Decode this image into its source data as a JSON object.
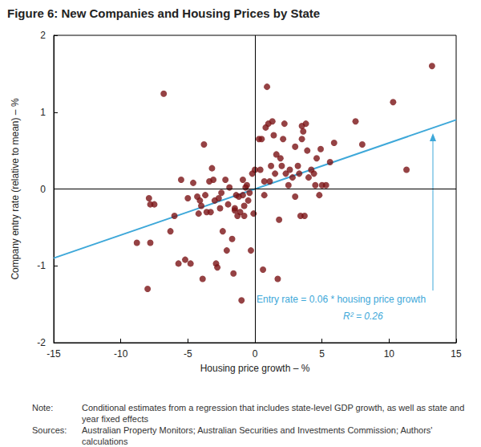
{
  "chart_data": {
    "type": "scatter",
    "title": "Figure 6: New Companies and Housing Prices by State",
    "x_label": "Housing price growth – %",
    "y_label": "Company entry rate (relative to mean) – %",
    "xlim": [
      -15,
      15
    ],
    "xticks": [
      -15,
      -10,
      -5,
      0,
      5,
      10,
      15
    ],
    "ylim": [
      -2,
      2
    ],
    "yticks": [
      -2,
      -1,
      0,
      1,
      2
    ],
    "grid": false,
    "annotations": [
      "Entry rate = 0.06 * housing price growth",
      "R² = 0.26"
    ],
    "notes": [
      {
        "label": "Note:",
        "text": "Conditional estimates from a regression that includes state-level GDP growth, as well as state and year fixed effects"
      },
      {
        "label": "Sources:",
        "text": "Australian Property Monitors; Australian Securities and Investments Commission; Authors' calculations"
      }
    ],
    "series": [
      {
        "type": "scatter",
        "color": "#7a1315",
        "marker": "circle",
        "x": [
          -8.8,
          -8,
          -7.9,
          -7.8,
          -7.5,
          -7.8,
          -6.8,
          -6.3,
          -6,
          -5.7,
          -5.5,
          -5.2,
          -5,
          -4.8,
          -4.6,
          -4.3,
          -4.2,
          -4,
          -3.9,
          -3.8,
          -3.7,
          -3.6,
          -3.4,
          -3.3,
          -3.2,
          -3.1,
          -3,
          -2.9,
          -2.8,
          -2.7,
          -2.6,
          -2.4,
          -2.2,
          -2.1,
          -2,
          -1.9,
          -1.7,
          -1.6,
          -1.5,
          -1.4,
          -1.3,
          -1.2,
          -1.1,
          -1,
          -0.9,
          -0.9,
          -0.8,
          -0.7,
          -0.6,
          -0.5,
          -0.4,
          -0.3,
          -0.2,
          -0.1,
          0,
          0.3,
          0.4,
          0.5,
          0.6,
          0.7,
          0.8,
          0.9,
          1.0,
          1.1,
          1.2,
          1.3,
          1.4,
          1.5,
          1.6,
          1.7,
          1.8,
          1.9,
          2.0,
          2.1,
          2.2,
          2.3,
          2.5,
          2.6,
          2.8,
          3.0,
          3.0,
          3.2,
          3.3,
          3.4,
          3.5,
          3.5,
          3.6,
          3.7,
          3.8,
          3.9,
          4.0,
          4.2,
          4.4,
          4.5,
          4.6,
          4.8,
          4.9,
          5.0,
          5.3,
          5.6,
          5.9,
          7.5,
          8.0,
          10.3,
          11.3,
          13.2,
          -0.8,
          -1.5,
          0.7,
          -2.5,
          -4.1
        ],
        "values": [
          -0.7,
          -1.3,
          -0.12,
          -0.2,
          -0.2,
          -0.7,
          1.24,
          -0.55,
          -0.35,
          -0.97,
          0.12,
          -0.92,
          -0.12,
          -0.97,
          0.08,
          -0.1,
          -0.32,
          -0.22,
          -1.17,
          0.58,
          -0.08,
          -0.3,
          0.1,
          -0.3,
          0.27,
          0.12,
          -0.15,
          -0.97,
          -1.02,
          -0.12,
          -0.25,
          -0.55,
          0.12,
          -0.8,
          -0.2,
          0.02,
          -0.65,
          -1.1,
          -0.25,
          -0.08,
          -0.35,
          -0.1,
          -0.3,
          -1.45,
          0.12,
          -0.08,
          -0.22,
          0.02,
          0.05,
          -0.15,
          -0.05,
          -0.8,
          0.2,
          -0.32,
          0.25,
          0.65,
          0.25,
          0.65,
          -1.05,
          0.1,
          0.8,
          1.33,
          0.85,
          0.1,
          0.3,
          0.88,
          0.7,
          0.2,
          0.45,
          -1.17,
          -0.4,
          0.4,
          0.3,
          0.65,
          0.85,
          0.2,
          0.05,
          0.25,
          0.15,
          0.55,
          -0.1,
          0.3,
          0.2,
          -0.35,
          0.65,
          0.82,
          0.75,
          -0.35,
          0.85,
          0.5,
          0.15,
          0.25,
          0.2,
          0.05,
          0.4,
          -0.08,
          0.52,
          0.05,
          0.05,
          0.35,
          0.6,
          0.88,
          0.58,
          1.13,
          0.25,
          1.6,
          -0.35,
          -0.28,
          -0.08,
          -0.05,
          -0.15
        ]
      },
      {
        "type": "line",
        "color": "#3ea8d9",
        "line_style": "solid",
        "x": [
          -15,
          15
        ],
        "values": [
          -0.9,
          0.9
        ]
      }
    ]
  }
}
